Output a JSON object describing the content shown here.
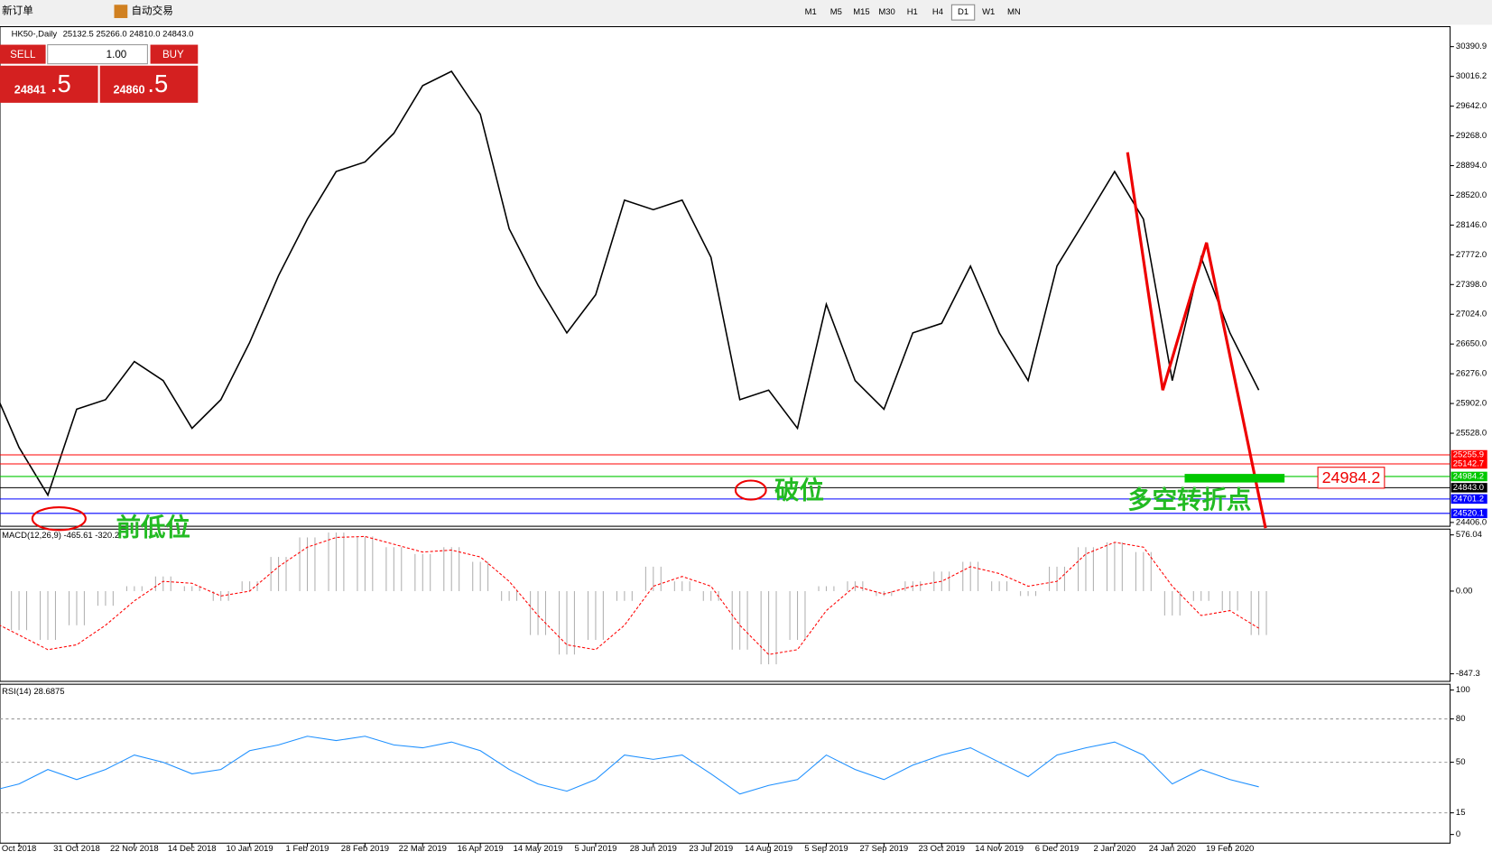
{
  "toolbar": {
    "items": [
      "新订单",
      "自动交易"
    ],
    "periods": [
      "M1",
      "M5",
      "M15",
      "M30",
      "H1",
      "H4",
      "D1",
      "W1",
      "MN"
    ]
  },
  "trade_panel": {
    "sell": "SELL",
    "buy": "BUY",
    "lots": "1.00",
    "sell_price": "24841",
    "sell_frac": ".5",
    "buy_price": "24860",
    "buy_frac": ".5"
  },
  "chart_data": [
    {
      "type": "line",
      "title": "HK50-,Daily",
      "subtitle": "25132.5 25266.0 24810.0 24843.0",
      "categories": [
        null,
        "Oct 2018",
        null,
        "31 Oct 2018",
        null,
        "22 Nov 2018",
        null,
        "14 Dec 2018",
        null,
        "10 Jan 2019",
        null,
        "1 Feb 2019",
        null,
        "28 Feb 2019",
        null,
        "22 Mar 2019",
        null,
        "16 Apr 2019",
        null,
        "14 May 2019",
        null,
        "5 Jun 2019",
        null,
        "28 Jun 2019",
        null,
        "23 Jul 2019",
        null,
        "14 Aug 2019",
        null,
        "5 Sep 2019",
        null,
        "27 Sep 2019",
        null,
        "23 Oct 2019",
        null,
        "14 Nov 2019",
        null,
        "6 Dec 2019",
        null,
        "2 Jan 2020",
        null,
        "24 Jan 2020",
        null,
        "19 Feb 2020",
        null
      ],
      "series": [
        {
          "color": "#000000",
          "values": [
            26190,
            25350,
            24750,
            25830,
            25950,
            26430,
            26190,
            25590,
            25950,
            26670,
            27510,
            28220,
            28820,
            28940,
            29300,
            29900,
            30080,
            29540,
            28100,
            27390,
            26790,
            27270,
            28460,
            28340,
            28460,
            27740,
            25950,
            26070,
            25590,
            27150,
            26190,
            25830,
            26790,
            26910,
            27630,
            26790,
            26190,
            27630,
            28220,
            28820,
            28220,
            26190,
            27740,
            26790,
            26070
          ]
        }
      ],
      "ylim": [
        24358,
        30642
      ],
      "yticks": [
        30390.9,
        {
          "value": 30016.2,
          "label": "30016.2"
        },
        {
          "value": 29642,
          "label": "29642.0"
        },
        {
          "value": 29268,
          "label": "29268.0"
        },
        {
          "value": 28894,
          "label": "28894.0"
        },
        {
          "value": 28520,
          "label": "28520.0"
        },
        {
          "value": 28146,
          "label": "28146.0"
        },
        {
          "value": 27772,
          "label": "27772.0"
        },
        {
          "value": 27398,
          "label": "27398.0"
        },
        {
          "value": 27024,
          "label": "27024.0"
        },
        {
          "value": 26650,
          "label": "26650.0"
        },
        {
          "value": 26276,
          "label": "26276.0"
        },
        {
          "value": 25902,
          "label": "25902.0"
        },
        {
          "value": 25528,
          "label": "25528.0"
        },
        {
          "value": 24406,
          "label": "24406.0"
        }
      ],
      "levels": [
        {
          "value": 25255.9,
          "color": "#ff0000"
        },
        {
          "value": 25142.7,
          "color": "#ff0000"
        },
        {
          "value": 24984.2,
          "color": "#00c800"
        },
        {
          "value": 24843,
          "label": "24843.0",
          "color": "#000000"
        },
        {
          "value": 24701.2,
          "color": "#0000ff"
        },
        {
          "value": 24520.1,
          "color": "#0000ff"
        }
      ],
      "annotations": [
        "前低位",
        "破位",
        "多空转折点",
        "24984.2"
      ]
    },
    {
      "type": "macd",
      "title": "MACD(12,26,9) -465.61 -320.2",
      "series": [
        {
          "color": "#b0b0b0",
          "values": [
            -200,
            -400,
            -500,
            -350,
            -150,
            50,
            150,
            50,
            -100,
            100,
            350,
            550,
            600,
            560,
            450,
            380,
            450,
            300,
            -100,
            -450,
            -650,
            -500,
            -100,
            250,
            100,
            -100,
            -600,
            -750,
            -500,
            50,
            100,
            -50,
            100,
            200,
            300,
            100,
            -50,
            250,
            450,
            500,
            400,
            -250,
            -100,
            -200,
            -450
          ]
        },
        {
          "color": "#ff0000",
          "values": [
            -300,
            -450,
            -600,
            -550,
            -350,
            -100,
            100,
            80,
            -50,
            0,
            250,
            450,
            550,
            560,
            480,
            400,
            420,
            350,
            100,
            -250,
            -550,
            -600,
            -350,
            50,
            150,
            50,
            -350,
            -650,
            -600,
            -200,
            50,
            -30,
            50,
            100,
            250,
            180,
            50,
            100,
            380,
            500,
            450,
            50,
            -250,
            -200,
            -380
          ]
        }
      ],
      "ylim": [
        -925,
        635
      ],
      "yticks": [
        576.04,
        {
          "value": 0,
          "label": "0.00"
        },
        -847.3
      ]
    },
    {
      "type": "line",
      "title": "RSI(14) 28.6875",
      "series": [
        {
          "color": "#1e90ff",
          "values": [
            30,
            35,
            45,
            38,
            45,
            55,
            50,
            42,
            45,
            58,
            62,
            68,
            65,
            68,
            62,
            60,
            64,
            58,
            45,
            35,
            30,
            38,
            55,
            52,
            55,
            42,
            28,
            34,
            38,
            55,
            45,
            38,
            48,
            55,
            60,
            50,
            40,
            55,
            60,
            64,
            55,
            35,
            45,
            38,
            33
          ]
        }
      ],
      "ylim": [
        -6,
        104
      ],
      "yticks": [
        100,
        80,
        50,
        15,
        0
      ]
    }
  ]
}
